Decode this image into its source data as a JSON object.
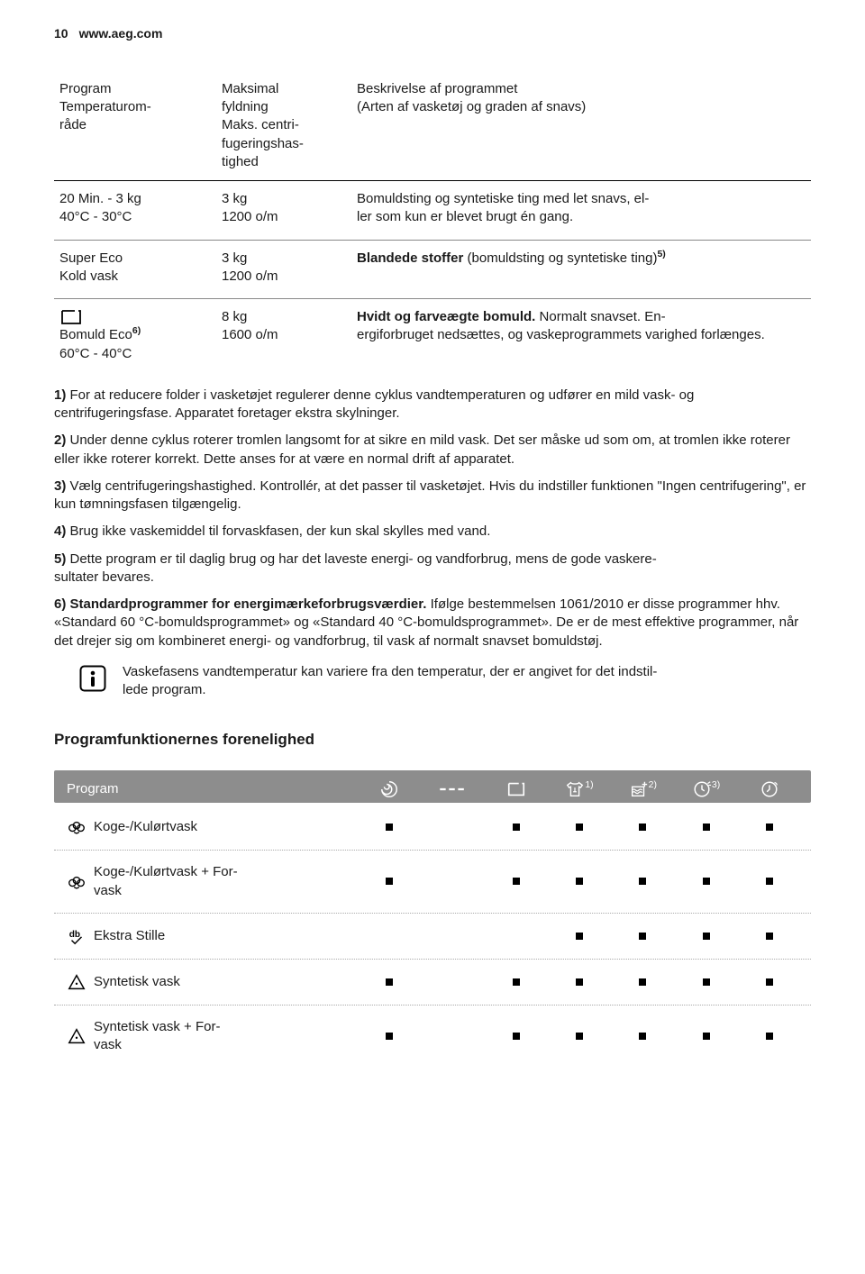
{
  "page": {
    "number": "10",
    "url": "www.aeg.com"
  },
  "programs_table": {
    "headers": {
      "col_a": "Program\nTemperaturom‐\nråde",
      "col_b": "Maksimal\nfyldning\nMaks. centri‐\nfugeringshas‐\ntighed",
      "col_c": "Beskrivelse af programmet\n(Arten af vasketøj og graden af snavs)"
    },
    "rows": [
      {
        "a_line1": "20 Min. - 3 kg",
        "a_line2": "40°C - 30°C",
        "b_line1": "3 kg",
        "b_line2": "1200 o/m",
        "c_plain_before": "Bomuldsting og syntetiske ting med let snavs, el‐\nler som kun er blevet brugt én gang.",
        "c_bold": "",
        "c_plain_after": "",
        "c_sup": ""
      },
      {
        "a_line1": "Super Eco",
        "a_line2": "Kold vask",
        "b_line1": "3 kg",
        "b_line2": "1200 o/m",
        "c_bold": "Blandede stoffer",
        "c_plain_after": " (bomuldsting og syntetiske ting)",
        "c_sup": "5)",
        "c_plain_before": ""
      },
      {
        "has_icon": true,
        "a_line1": "",
        "a_line2_prefix": "Bomuld Eco",
        "a_line2_sup": "6)",
        "a_line3": "60°C - 40°C",
        "b_line1": "8 kg",
        "b_line2": "1600 o/m",
        "c_bold": "Hvidt og farveægte bomuld.",
        "c_plain_after": " Normalt snavset. En‐\nergiforbruget nedsættes, og vaskeprogrammets varighed forlænges.",
        "c_sup": "",
        "c_plain_before": ""
      }
    ]
  },
  "footnotes": [
    {
      "num": "1)",
      "text": " For at reducere folder i vasketøjet regulerer denne cyklus vandtemperaturen og udfører en mild vask- og centrifugeringsfase. Apparatet foretager ekstra skylninger."
    },
    {
      "num": "2)",
      "text": " Under denne cyklus roterer tromlen langsomt for at sikre en mild vask. Det ser måske ud som om, at tromlen ikke roterer eller ikke roterer korrekt. Dette anses for at være en normal drift af apparatet."
    },
    {
      "num": "3)",
      "text": " Vælg centrifugeringshastighed. Kontrollér, at det passer til vasketøjet. Hvis du indstiller funktionen \"Ingen centrifugering\", er kun tømningsfasen tilgængelig."
    },
    {
      "num": "4)",
      "text": " Brug ikke vaskemiddel til forvaskfasen, der kun skal skylles med vand."
    },
    {
      "num": "5)",
      "text": " Dette program er til daglig brug og har det laveste energi- og vandforbrug, mens de gode vaskere‐\nsultater bevares."
    },
    {
      "num": "6)",
      "bold_lead": "Standardprogrammer for energimærkeforbrugsværdier.",
      "text": " Ifølge bestemmelsen 1061/2010 er disse programmer hhv. «Standard 60 °C-bomuldsprogrammet» og «Standard 40 °C-bomuldsprogrammet». De er de mest effektive programmer, når det drejer sig om kombineret energi- og vandforbrug, til vask af normalt snavset bomuldstøj."
    }
  ],
  "info_note": "Vaskefasens vandtemperatur kan variere fra den temperatur, der er angivet for det indstil‐\nlede program.",
  "compat": {
    "heading": "Programfunktionernes forenelighed",
    "header_label": "Program",
    "col_sups": [
      "",
      "",
      "",
      "1)",
      "2)",
      "3)",
      ""
    ],
    "rows": [
      {
        "icon": "cotton",
        "name": "Koge-/Kulørtvask",
        "marks": [
          true,
          false,
          true,
          true,
          true,
          true,
          true
        ]
      },
      {
        "icon": "cotton",
        "name": "Koge-/Kulørtvask + For‐\nvask",
        "marks": [
          true,
          false,
          true,
          true,
          true,
          true,
          true
        ]
      },
      {
        "icon": "db",
        "name": "Ekstra Stille",
        "marks": [
          false,
          false,
          false,
          true,
          true,
          true,
          true
        ]
      },
      {
        "icon": "triangle",
        "name": "Syntetisk vask",
        "marks": [
          true,
          false,
          true,
          true,
          true,
          true,
          true
        ]
      },
      {
        "icon": "triangle",
        "name": "Syntetisk vask + For‐\nvask",
        "marks": [
          true,
          false,
          true,
          true,
          true,
          true,
          true
        ]
      }
    ]
  },
  "icons": {
    "header_icon_color": "#ffffff",
    "row_icon_color": "#000000"
  }
}
